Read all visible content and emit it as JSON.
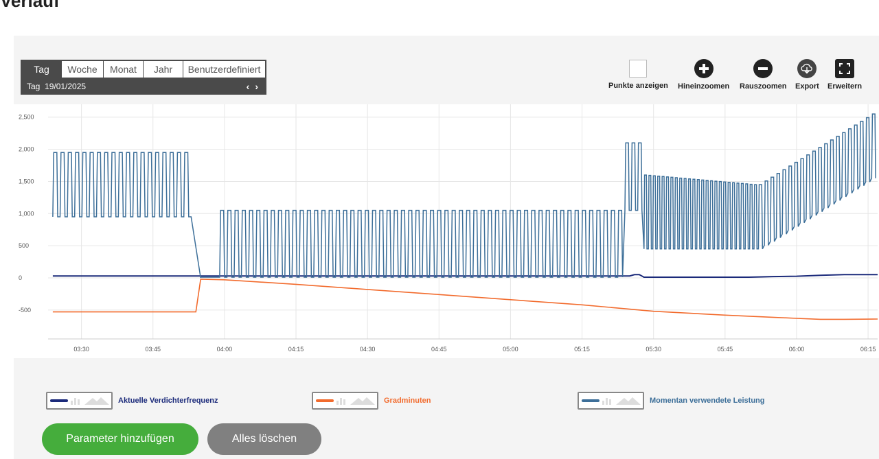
{
  "page": {
    "title": "Verlauf"
  },
  "period_selector": {
    "tabs": [
      "Tag",
      "Woche",
      "Monat",
      "Jahr",
      "Benutzerdefiniert"
    ],
    "active_tab": "Tag",
    "date_label": "Tag  19/01/2025",
    "prev_symbol": "‹",
    "next_symbol": "›"
  },
  "toolbar": {
    "show_points": "Punkte anzeigen",
    "zoom_in": "Hineinzoomen",
    "zoom_out": "Rauszoomen",
    "export": "Export",
    "expand": "Erweitern"
  },
  "buttons": {
    "add_parameter": "Parameter hinzufügen",
    "clear_all": "Alles löschen"
  },
  "colors": {
    "frequency": "#1b2a7a",
    "gradminuten": "#f26b2d",
    "power": "#3d6f99",
    "grid": "#e6e6e6",
    "add_button": "#45ad3c",
    "clear_button": "#808080"
  },
  "chart_data": {
    "type": "line",
    "title": "",
    "xlabel": "",
    "ylabel": "",
    "x_ticks": [
      "03:30",
      "03:45",
      "04:00",
      "04:15",
      "04:30",
      "04:45",
      "05:00",
      "05:15",
      "05:30",
      "05:45",
      "06:00",
      "06:15"
    ],
    "y_ticks": [
      2500,
      2000,
      1500,
      1000,
      500,
      0,
      -500
    ],
    "y_tick_labels": [
      "2,500",
      "2,000",
      "1,500",
      "1,000",
      "500",
      "0",
      "-500"
    ],
    "ylim": [
      -950,
      2700
    ],
    "xlim": [
      "03:23",
      "06:17"
    ],
    "grid": true,
    "legend_position": "bottom",
    "series": [
      {
        "name": "Aktuelle Verdichterfrequenz",
        "color": "#1b2a7a",
        "x": [
          "03:24",
          "03:56",
          "05:25",
          "05:26",
          "05:27",
          "05:28",
          "05:45",
          "05:50",
          "05:55",
          "06:00",
          "06:05",
          "06:10",
          "06:17"
        ],
        "y": [
          30,
          30,
          30,
          50,
          50,
          10,
          10,
          10,
          20,
          25,
          40,
          50,
          50
        ]
      },
      {
        "name": "Gradminuten",
        "color": "#f26b2d",
        "x": [
          "03:24",
          "03:54",
          "03:55",
          "04:00",
          "04:15",
          "04:30",
          "04:45",
          "05:00",
          "05:15",
          "05:30",
          "05:45",
          "06:00",
          "06:05",
          "06:10",
          "06:17"
        ],
        "y": [
          -530,
          -530,
          -20,
          -30,
          -100,
          -180,
          -260,
          -340,
          -420,
          -520,
          -580,
          -630,
          -645,
          -645,
          -640
        ]
      },
      {
        "name": "Momentan verwendete Leistung",
        "color": "#3d6f99",
        "segments": [
          {
            "start": "03:24",
            "end": "03:53",
            "low": 950,
            "high": 1950,
            "cycles": 19
          },
          {
            "start": "03:53",
            "end": "03:55",
            "from": 950,
            "to": 0
          },
          {
            "start": "03:55",
            "end": "03:59",
            "value": 10
          },
          {
            "start": "03:59",
            "end": "05:24",
            "low": 10,
            "high": 1050,
            "cycles": 56
          },
          {
            "start": "05:24",
            "end": "05:28",
            "low": 1050,
            "high": 2100,
            "cycles": 3
          },
          {
            "start": "05:28",
            "end": "05:52",
            "low": 450,
            "peak_from": 1600,
            "peak_to": 1450,
            "cycles": 26
          },
          {
            "start": "05:52",
            "end": "06:17",
            "low_from": 450,
            "low_to": 1550,
            "peak_from": 1450,
            "peak_to": 2550,
            "cycles": 20
          }
        ]
      }
    ]
  }
}
